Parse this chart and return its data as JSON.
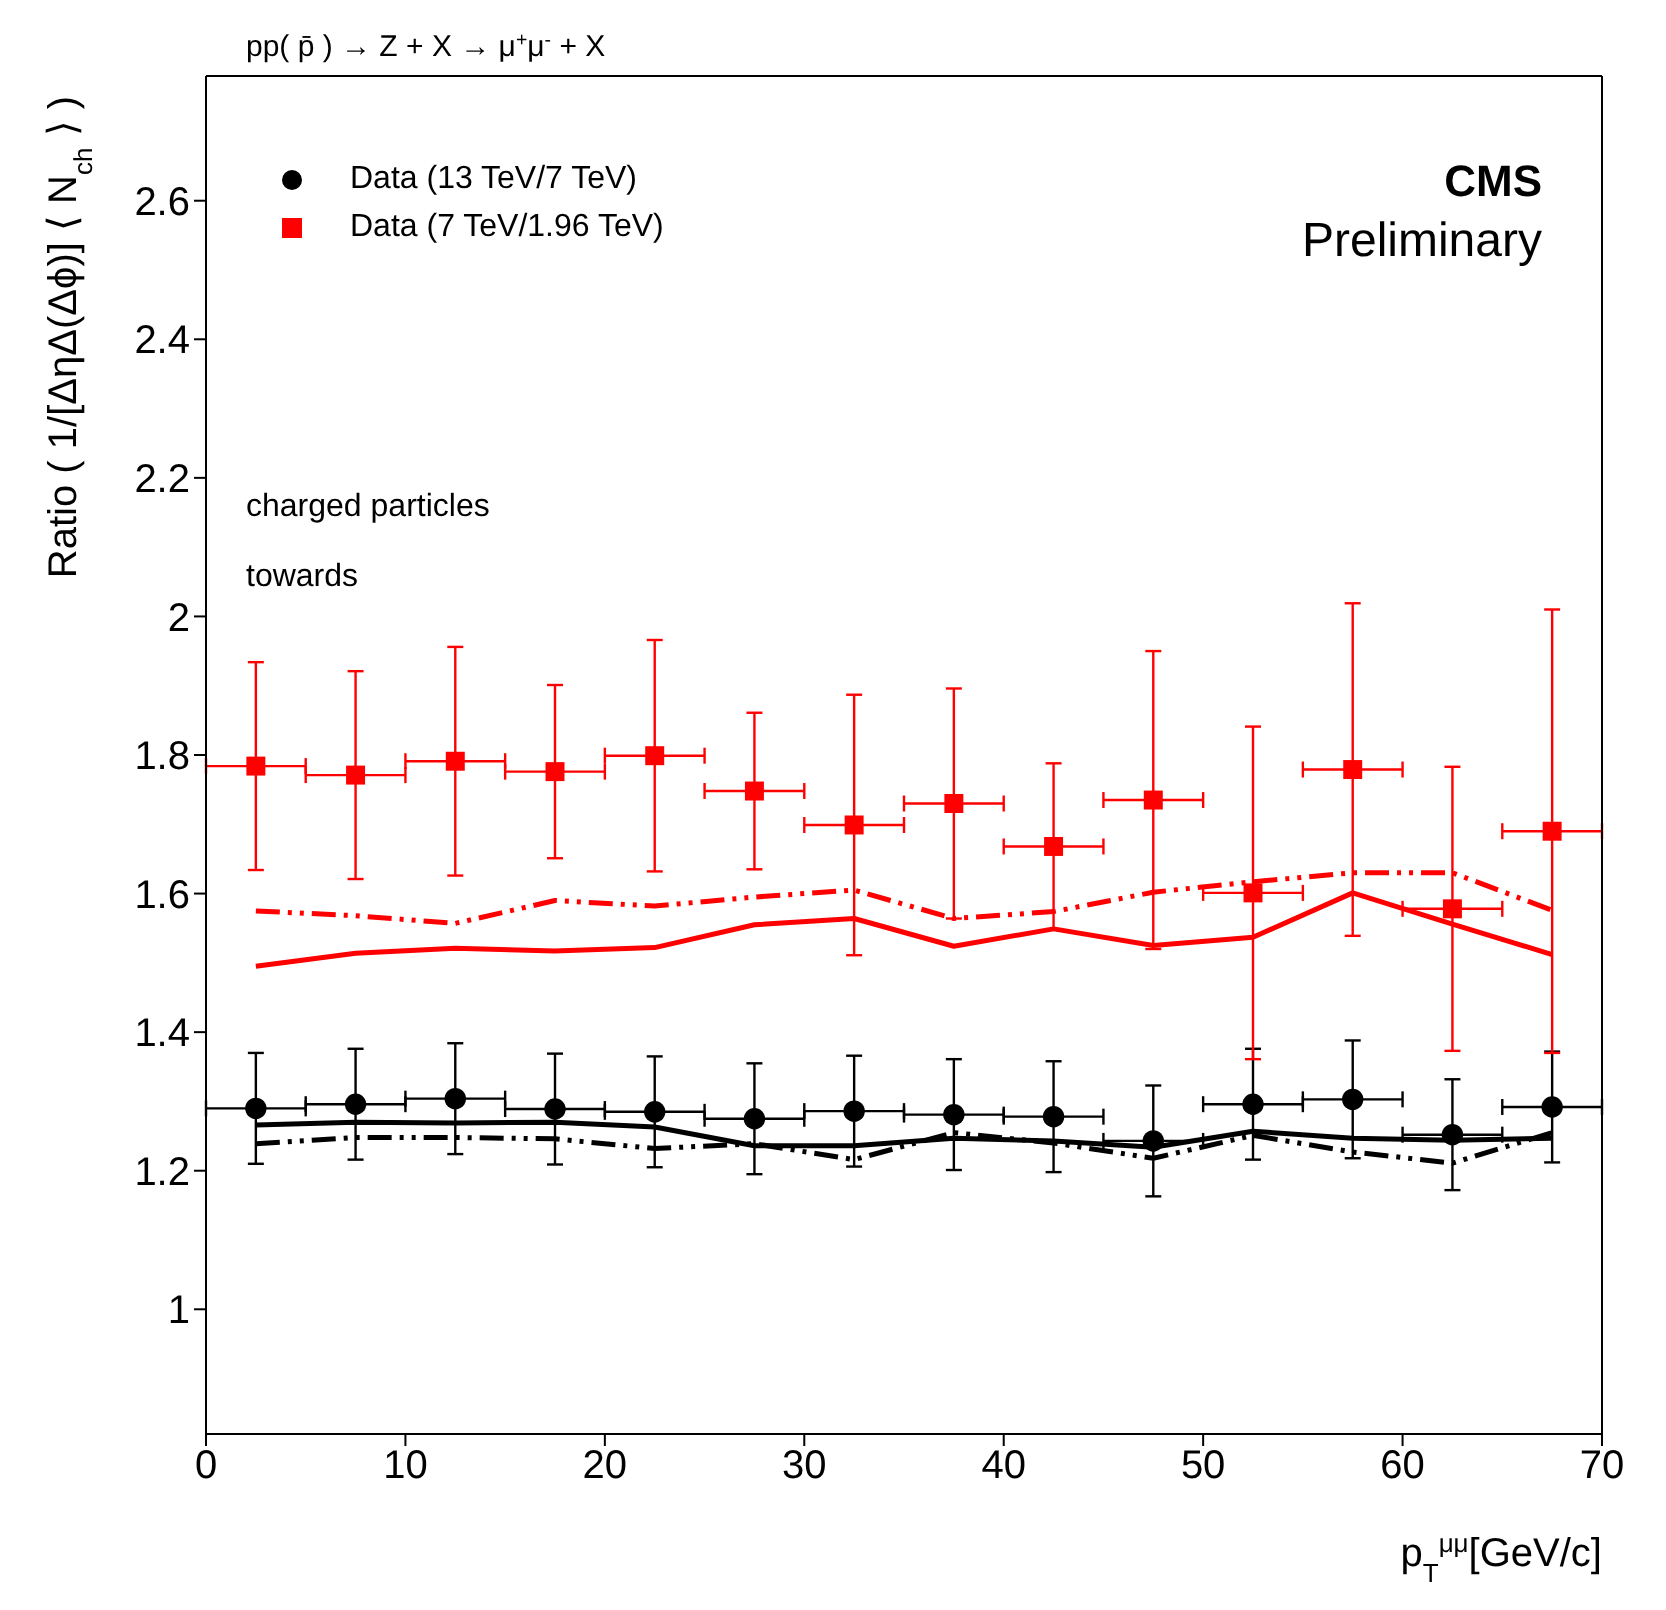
{
  "chart_data": {
    "type": "scatter",
    "title": "pp( p̄ ) → Z + X → μ$^{+}$μ$^{-}$ + X",
    "xlabel": "p$_{T}$$^{μμ}$[GeV/c]",
    "ylabel": "Ratio ( 1/[ΔηΔ(Δϕ)] ⟨ N$_{ch}$ ⟩ )",
    "x": [
      2.5,
      7.5,
      12.5,
      17.5,
      22.5,
      27.5,
      32.5,
      37.5,
      42.5,
      47.5,
      52.5,
      57.5,
      62.5,
      67.5
    ],
    "series": [
      {
        "name": "Data (13 TeV/7 TeV)",
        "marker": "circle",
        "color": "#000000",
        "values": [
          1.29,
          1.296,
          1.304,
          1.289,
          1.285,
          1.275,
          1.286,
          1.281,
          1.278,
          1.243,
          1.296,
          1.303,
          1.252,
          1.292
        ],
        "errors": [
          0.08,
          0.08,
          0.08,
          0.08,
          0.08,
          0.08,
          0.08,
          0.08,
          0.08,
          0.08,
          0.08,
          0.085,
          0.08,
          0.08
        ],
        "xerrors": [
          2.5,
          2.5,
          2.5,
          2.5,
          2.5,
          2.5,
          2.5,
          2.5,
          2.5,
          2.5,
          2.5,
          2.5,
          2.5,
          2.5
        ]
      },
      {
        "type": "line",
        "marker": "none",
        "line_style": "dashed",
        "color": "#000000",
        "values": [
          1.239,
          1.248,
          1.248,
          1.246,
          1.232,
          1.239,
          1.216,
          1.255,
          1.24,
          1.218,
          1.251,
          1.227,
          1.211,
          1.255
        ]
      },
      {
        "type": "line",
        "marker": "none",
        "line_style": "solid",
        "color": "#000000",
        "values": [
          1.266,
          1.27,
          1.269,
          1.27,
          1.263,
          1.236,
          1.236,
          1.247,
          1.243,
          1.234,
          1.257,
          1.247,
          1.244,
          1.247
        ]
      },
      {
        "name": "Data (7 TeV/1.96 TeV)",
        "marker": "square",
        "color": "#ff0000",
        "values": [
          1.784,
          1.771,
          1.791,
          1.776,
          1.799,
          1.748,
          1.699,
          1.73,
          1.668,
          1.735,
          1.601,
          1.779,
          1.578,
          1.69
        ],
        "errors": [
          0.15,
          0.15,
          0.165,
          0.125,
          0.167,
          0.113,
          0.188,
          0.166,
          0.12,
          0.215,
          0.24,
          0.24,
          0.205,
          0.32
        ],
        "xerrors": [
          2.5,
          2.5,
          2.5,
          2.5,
          2.5,
          2.5,
          2.5,
          2.5,
          2.5,
          2.5,
          2.5,
          2.5,
          2.5,
          2.5
        ]
      },
      {
        "type": "line",
        "marker": "none",
        "line_style": "dashed",
        "color": "#ff0000",
        "values": [
          1.575,
          1.568,
          1.557,
          1.59,
          1.582,
          1.595,
          1.605,
          1.564,
          1.574,
          1.602,
          1.617,
          1.63,
          1.63,
          1.576
        ]
      },
      {
        "type": "line",
        "marker": "none",
        "line_style": "solid",
        "color": "#ff0000",
        "values": [
          1.495,
          1.514,
          1.521,
          1.517,
          1.522,
          1.555,
          1.564,
          1.524,
          1.549,
          1.525,
          1.537,
          1.601,
          1.556,
          1.512
        ]
      }
    ],
    "xlim": [
      0,
      70
    ],
    "xticks": [
      0,
      10,
      20,
      30,
      40,
      50,
      60,
      70
    ],
    "ylim": [
      0.82,
      2.78
    ],
    "yticks": [
      1,
      1.2,
      1.4,
      1.6,
      1.8,
      2,
      2.2,
      2.4,
      2.6
    ],
    "legend": "top left",
    "annotations": [
      "charged particles",
      "towards",
      "CMS",
      "Preliminary"
    ]
  }
}
